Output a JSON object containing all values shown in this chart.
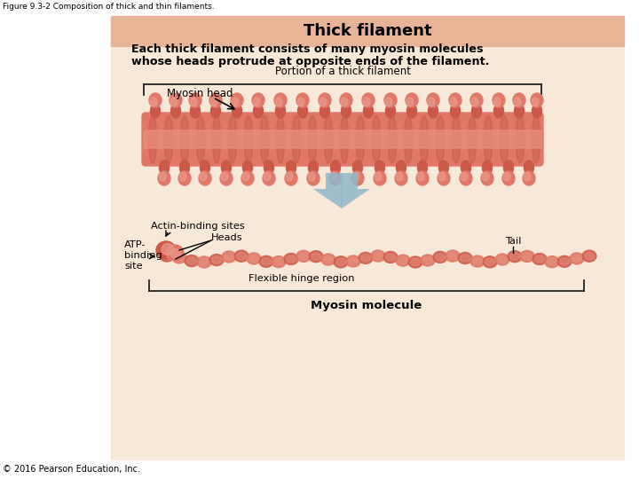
{
  "figure_label": "Figure 9.3-2 Composition of thick and thin filaments.",
  "title": "Thick filament",
  "title_bg": "#e8b498",
  "body_bg": "#f8e8d8",
  "text1": "Each thick filament consists of many myosin molecules",
  "text2": "whose heads protrude at opposite ends of the filament.",
  "label_portion": "Portion of a thick filament",
  "label_myosin_head": "Myosin head",
  "label_actin": "Actin-binding sites",
  "label_heads": "Heads",
  "label_atp": "ATP-\nbinding\nsite",
  "label_hinge": "Flexible hinge region",
  "label_tail": "Tail",
  "label_myosin_mol": "Myosin molecule",
  "copyright": "© 2016 Pearson Education, Inc.",
  "filament_core": "#d06050",
  "filament_mid": "#e07868",
  "filament_light": "#e89080",
  "filament_dark": "#b84838",
  "head_base": "#cc5848",
  "head_mid": "#e07868",
  "head_light": "#ec9888",
  "arrow_color": "#90b8cc",
  "bracket_color": "#222222",
  "line_color": "#222222"
}
